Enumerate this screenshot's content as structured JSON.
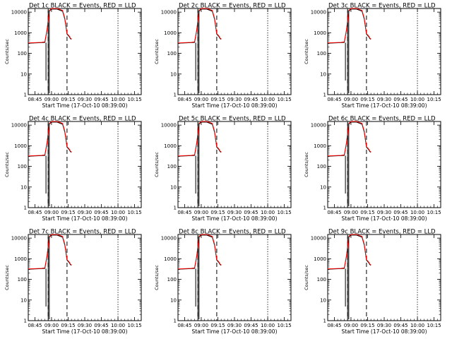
{
  "chart_data": {
    "type": "line",
    "layout": "3x3 grid",
    "y_scale": "log",
    "ylim": [
      1,
      15000
    ],
    "ytick_labels": [
      "1",
      "10",
      "100",
      "1000",
      "10000"
    ],
    "xtick_labels": [
      "08:45",
      "09:00",
      "09:15",
      "09:30",
      "09:45",
      "10:00",
      "10:15"
    ],
    "xlabel": "Start Time (17-Oct-10 08:39:00)",
    "ylabel": "Counts/sec",
    "series_colors": {
      "events": "#000000",
      "lld": "#ff0000"
    },
    "panels": [
      {
        "title": "Det 1c BLACK = Events, RED = LLD"
      },
      {
        "title": "Det 2c BLACK = Events, RED = LLD"
      },
      {
        "title": "Det 3c BLACK = Events, RED = LLD"
      },
      {
        "title": "Det 4c BLACK = Events, RED = LLD"
      },
      {
        "title": "Det 5c BLACK = Events, RED = LLD"
      },
      {
        "title": "Det 6c BLACK = Events, RED = LLD"
      },
      {
        "title": "Det 7c BLACK = Events, RED = LLD"
      },
      {
        "title": "Det 8c BLACK = Events, RED = LLD"
      },
      {
        "title": "Det 9c BLACK = Events, RED = LLD"
      }
    ],
    "time_window": [
      "08:39",
      "10:21"
    ],
    "vertical_markers_dashed": [
      "08:57",
      "09:14"
    ],
    "vertical_markers_dotted": [
      "10:00",
      "10:21"
    ],
    "series_lld": [
      {
        "t": "08:39",
        "v": 320
      },
      {
        "t": "08:45",
        "v": 330
      },
      {
        "t": "08:51",
        "v": 340
      },
      {
        "t": "08:54",
        "v": 360
      },
      {
        "t": "08:56",
        "v": 1500
      },
      {
        "t": "08:58",
        "v": 12000
      },
      {
        "t": "09:00",
        "v": 15000
      },
      {
        "t": "09:05",
        "v": 15000
      },
      {
        "t": "09:10",
        "v": 12000
      },
      {
        "t": "09:12",
        "v": 5000
      },
      {
        "t": "09:14",
        "v": 900
      },
      {
        "t": "09:16",
        "v": 700
      },
      {
        "t": "09:17",
        "v": 550
      },
      {
        "t": "09:18",
        "v": 500
      }
    ],
    "series_events": [
      {
        "t": "08:39",
        "v": 310
      },
      {
        "t": "08:45",
        "v": 320
      },
      {
        "t": "08:51",
        "v": 330
      },
      {
        "t": "08:54",
        "v": 340
      },
      {
        "t": "08:56",
        "v": 1400
      },
      {
        "t": "08:58",
        "v": 11000
      },
      {
        "t": "09:00",
        "v": 14000
      },
      {
        "t": "09:05",
        "v": 14000
      },
      {
        "t": "09:10",
        "v": 11000
      },
      {
        "t": "09:12",
        "v": 4500
      },
      {
        "t": "09:14",
        "v": 850
      },
      {
        "t": "09:16",
        "v": 650
      },
      {
        "t": "09:17",
        "v": 520
      },
      {
        "t": "09:18",
        "v": 480
      }
    ]
  }
}
